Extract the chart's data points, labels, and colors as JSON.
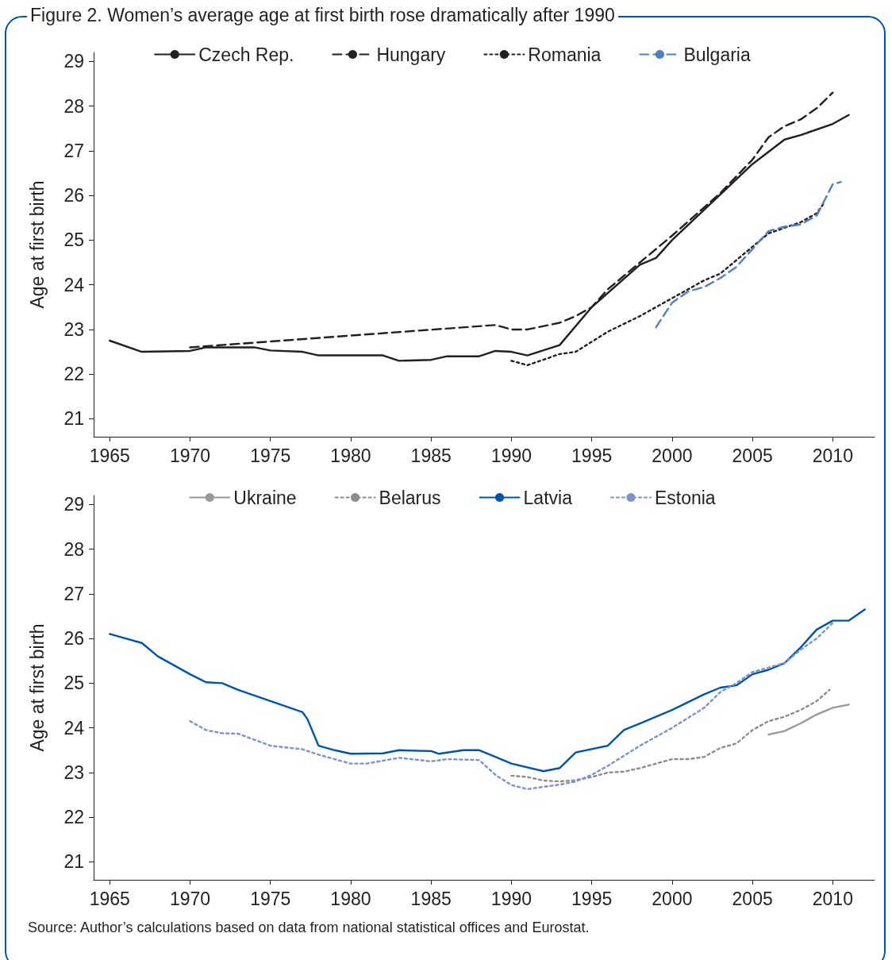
{
  "chart_data": [
    {
      "type": "line",
      "title": "Figure 2. Women’s average age at first birth rose dramatically after 1990",
      "ylabel": "Age at first birth",
      "xlim": [
        1964,
        2012.6
      ],
      "xticks": [
        1965,
        1970,
        1975,
        1980,
        1985,
        1990,
        1995,
        2000,
        2005,
        2010
      ],
      "ylim": [
        20.6,
        29.2
      ],
      "yticks": [
        21,
        22,
        23,
        24,
        25,
        26,
        27,
        28,
        29
      ],
      "grid": false,
      "legend": "top",
      "series": [
        {
          "name": "Czech Rep.",
          "color": "#231f20",
          "line_style": "solid",
          "x": [
            1965,
            1967,
            1970,
            1971,
            1974,
            1975,
            1977,
            1978,
            1982,
            1983,
            1985,
            1986,
            1988,
            1989,
            1990,
            1991,
            1993,
            1995,
            1998,
            1999,
            2000,
            2005,
            2007,
            2008,
            2010,
            2011
          ],
          "values": [
            22.75,
            22.5,
            22.52,
            22.6,
            22.6,
            22.53,
            22.5,
            22.42,
            22.42,
            22.3,
            22.32,
            22.4,
            22.4,
            22.52,
            22.5,
            22.42,
            22.65,
            23.5,
            24.45,
            24.6,
            25.0,
            26.7,
            27.25,
            27.35,
            27.6,
            27.8
          ]
        },
        {
          "name": "Hungary",
          "color": "#231f20",
          "line_style": "dashed",
          "x": [
            1970,
            1989,
            1990,
            1991,
            1993,
            1994,
            1995,
            1996,
            1998,
            2000,
            2003,
            2005,
            2006,
            2007,
            2008,
            2009,
            2010
          ],
          "values": [
            22.6,
            23.1,
            23.0,
            23.0,
            23.15,
            23.3,
            23.5,
            23.9,
            24.5,
            25.1,
            26.05,
            26.8,
            27.3,
            27.55,
            27.7,
            27.95,
            28.3
          ]
        },
        {
          "name": "Romania",
          "color": "#231f20",
          "line_style": "dotted",
          "x": [
            1990,
            1991,
            1993,
            1994,
            1996,
            1998,
            2000,
            2002,
            2003,
            2005,
            2006,
            2008,
            2009,
            2009.5
          ],
          "values": [
            22.3,
            22.2,
            22.45,
            22.5,
            22.95,
            23.3,
            23.7,
            24.1,
            24.25,
            24.85,
            25.15,
            25.4,
            25.6,
            25.85
          ]
        },
        {
          "name": "Bulgaria",
          "color": "#4f7fc0",
          "line_style": "dashed",
          "x": [
            1999,
            2000,
            2001,
            2002,
            2003,
            2004,
            2005,
            2006,
            2007,
            2008,
            2009,
            2009.5,
            2010,
            2010.5
          ],
          "values": [
            23.05,
            23.6,
            23.85,
            23.95,
            24.15,
            24.4,
            24.8,
            25.2,
            25.3,
            25.35,
            25.55,
            25.9,
            26.25,
            26.3
          ]
        }
      ]
    },
    {
      "type": "line",
      "ylabel": "Age at first birth",
      "xlim": [
        1964,
        2012.6
      ],
      "xticks": [
        1965,
        1970,
        1975,
        1980,
        1985,
        1990,
        1995,
        2000,
        2005,
        2010
      ],
      "ylim": [
        20.6,
        29.2
      ],
      "yticks": [
        21,
        22,
        23,
        24,
        25,
        26,
        27,
        28,
        29
      ],
      "grid": false,
      "legend": "top",
      "annotations": [
        "Source: Author’s calculations based on data from national statistical offices and Eurostat."
      ],
      "series": [
        {
          "name": "Ukraine",
          "color": "#999999",
          "line_style": "solid",
          "x": [
            2006,
            2007,
            2008,
            2009,
            2010,
            2011
          ],
          "values": [
            23.85,
            23.93,
            24.1,
            24.3,
            24.45,
            24.52
          ]
        },
        {
          "name": "Belarus",
          "color": "#8c8c8c",
          "line_style": "dotted",
          "x": [
            1990,
            1991,
            1992,
            1993,
            1994,
            1995,
            1996,
            1997,
            1998,
            1999,
            2000,
            2001,
            2002,
            2003,
            2004,
            2005,
            2006,
            2007,
            2008,
            2009,
            2009.8
          ],
          "values": [
            22.93,
            22.9,
            22.82,
            22.8,
            22.83,
            22.9,
            23.0,
            23.02,
            23.1,
            23.2,
            23.3,
            23.3,
            23.35,
            23.55,
            23.65,
            23.95,
            24.15,
            24.25,
            24.4,
            24.6,
            24.85
          ]
        },
        {
          "name": "Latvia",
          "color": "#0056a4",
          "line_style": "solid",
          "x": [
            1965,
            1966,
            1967,
            1968,
            1970,
            1971,
            1972,
            1973,
            1975,
            1977,
            1977.3,
            1978,
            1979,
            1980,
            1982,
            1983,
            1985,
            1985.5,
            1987,
            1988,
            1989,
            1990,
            1992,
            1993,
            1994,
            1996,
            1997,
            1998,
            2000,
            2002,
            2003,
            2004,
            2005,
            2006,
            2007,
            2008,
            2009,
            2010,
            2011,
            2012
          ],
          "values": [
            26.1,
            26.0,
            25.9,
            25.6,
            25.2,
            25.02,
            25.0,
            24.85,
            24.6,
            24.35,
            24.2,
            23.6,
            23.5,
            23.42,
            23.43,
            23.5,
            23.48,
            23.42,
            23.5,
            23.5,
            23.35,
            23.2,
            23.03,
            23.1,
            23.45,
            23.6,
            23.95,
            24.1,
            24.4,
            24.75,
            24.9,
            24.95,
            25.2,
            25.3,
            25.45,
            25.8,
            26.2,
            26.4,
            26.4,
            26.65
          ]
        },
        {
          "name": "Estonia",
          "color": "#7a93cc",
          "line_style": "dotted",
          "x": [
            1970,
            1971,
            1972,
            1973,
            1975,
            1977,
            1978,
            1980,
            1981,
            1983,
            1985,
            1986,
            1988,
            1989,
            1990,
            1991,
            1993,
            1994,
            1995,
            1996,
            1998,
            2000,
            2002,
            2003,
            2004,
            2005,
            2006,
            2007,
            2008,
            2009,
            2010
          ],
          "values": [
            24.15,
            23.95,
            23.88,
            23.87,
            23.6,
            23.52,
            23.4,
            23.2,
            23.2,
            23.33,
            23.25,
            23.3,
            23.28,
            22.95,
            22.72,
            22.63,
            22.73,
            22.8,
            22.95,
            23.15,
            23.6,
            24.0,
            24.45,
            24.8,
            25.0,
            25.25,
            25.35,
            25.45,
            25.75,
            26.0,
            26.35
          ]
        }
      ]
    }
  ]
}
